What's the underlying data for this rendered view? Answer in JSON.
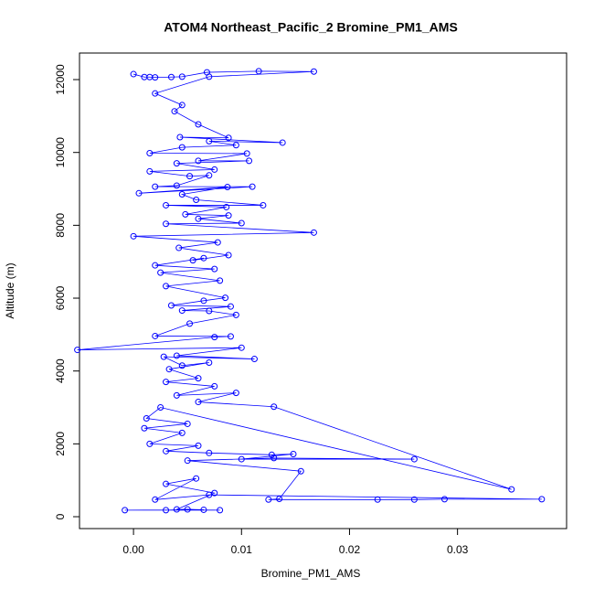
{
  "chart_data": {
    "type": "line",
    "title": "ATOM4 Northeast_Pacific_2 Bromine_PM1_AMS",
    "x_label": "Bromine_PM1_AMS",
    "y_label": "Altitude (m)",
    "series": [
      {
        "color": "#0000ff",
        "x": [
          0.0,
          0.001,
          0.0015,
          0.002,
          0.0035,
          0.0045,
          0.0068,
          0.0116,
          0.0167,
          0.007,
          0.002,
          0.0045,
          0.0038,
          0.006,
          0.0088,
          0.0043,
          0.0138,
          0.007,
          0.0095,
          0.0045,
          0.0015,
          0.0105,
          0.006,
          0.0107,
          0.004,
          0.0075,
          0.0015,
          0.0052,
          0.007,
          0.004,
          0.002,
          0.011,
          0.0005,
          0.0087,
          0.0045,
          0.0058,
          0.012,
          0.003,
          0.0086,
          0.0048,
          0.0088,
          0.006,
          0.01,
          0.003,
          0.0167,
          0.0,
          0.0078,
          0.0042,
          0.0088,
          0.0055,
          0.0065,
          0.002,
          0.0075,
          0.0025,
          0.008,
          0.003,
          0.0085,
          0.0065,
          0.0035,
          0.009,
          0.0045,
          0.007,
          0.0095,
          0.0052,
          0.002,
          0.009,
          0.0075,
          -0.0052,
          0.01,
          0.004,
          0.0112,
          0.0028,
          0.0045,
          0.007,
          0.0033,
          0.006,
          0.003,
          0.0075,
          0.004,
          0.0095,
          0.006,
          0.013,
          0.035,
          0.0025,
          0.0012,
          0.005,
          0.001,
          0.0045,
          0.0015,
          0.006,
          0.003,
          0.007,
          0.0128,
          0.0148,
          0.01,
          0.026,
          0.013,
          0.005,
          0.0155,
          0.0135,
          0.0125,
          0.0226,
          0.026,
          0.0288,
          0.0378,
          0.007,
          0.002,
          0.0058,
          0.003,
          0.0075,
          0.004,
          0.008,
          -0.0008,
          0.0065,
          0.005,
          0.003
        ],
        "values": [
          12150,
          12070,
          12070,
          12060,
          12070,
          12080,
          12200,
          12230,
          12220,
          12080,
          11620,
          11300,
          11130,
          10770,
          10400,
          10420,
          10270,
          10310,
          10200,
          10140,
          9980,
          9970,
          9770,
          9770,
          9700,
          9530,
          9480,
          9350,
          9370,
          9090,
          9060,
          9060,
          8880,
          9050,
          8850,
          8700,
          8550,
          8550,
          8500,
          8300,
          8270,
          8180,
          8060,
          8040,
          7800,
          7700,
          7530,
          7380,
          7180,
          7040,
          7100,
          6900,
          6800,
          6700,
          6480,
          6330,
          6010,
          5930,
          5800,
          5770,
          5660,
          5650,
          5540,
          5300,
          4960,
          4950,
          4930,
          4580,
          4640,
          4420,
          4330,
          4390,
          4150,
          4230,
          4050,
          3800,
          3700,
          3580,
          3330,
          3400,
          3150,
          3020,
          750,
          3000,
          2700,
          2550,
          2430,
          2300,
          2000,
          1950,
          1800,
          1750,
          1700,
          1720,
          1580,
          1580,
          1610,
          1540,
          1250,
          490,
          470,
          470,
          470,
          480,
          480,
          600,
          470,
          1050,
          900,
          650,
          200,
          180,
          180,
          190,
          200,
          180
        ]
      }
    ],
    "xlim": [
      -0.005,
      0.0401
    ],
    "ylim": [
      -326,
      12729
    ],
    "xticks": [
      {
        "value": 0,
        "label": "0.00"
      },
      0.01,
      0.02,
      0.03
    ],
    "yticks": [
      0,
      2000,
      4000,
      6000,
      8000,
      10000,
      12000
    ]
  }
}
